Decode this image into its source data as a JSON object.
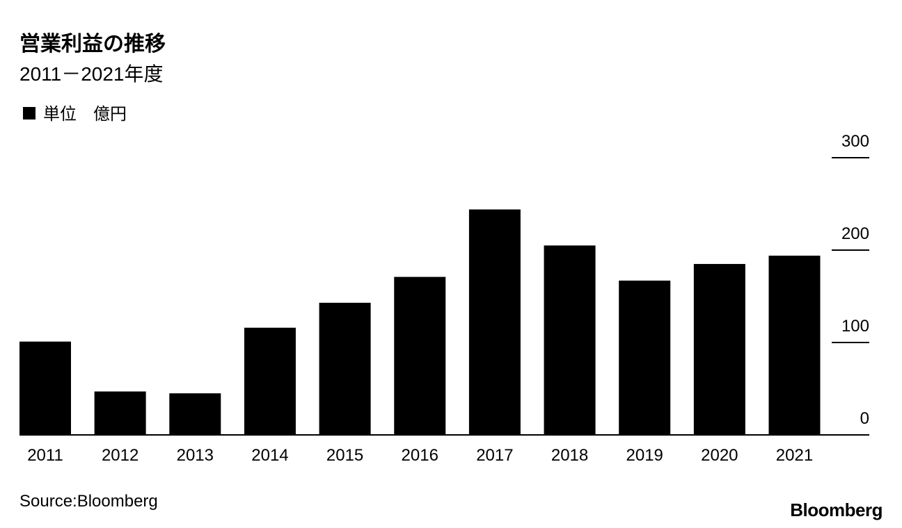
{
  "chart_data": {
    "type": "bar",
    "title": "営業利益の推移",
    "subtitle": "2011－2021年度",
    "unit": "単位　億円",
    "categories": [
      "2011",
      "2012",
      "2013",
      "2014",
      "2015",
      "2016",
      "2017",
      "2018",
      "2019",
      "2020",
      "2021"
    ],
    "values": [
      101,
      47,
      45,
      116,
      143,
      171,
      244,
      205,
      167,
      185,
      194
    ],
    "color": "#000000",
    "ylim": [
      0,
      300
    ],
    "yticks": [
      0,
      100,
      200,
      300
    ],
    "source": "Source:Bloomberg",
    "logo": "Bloomberg"
  }
}
